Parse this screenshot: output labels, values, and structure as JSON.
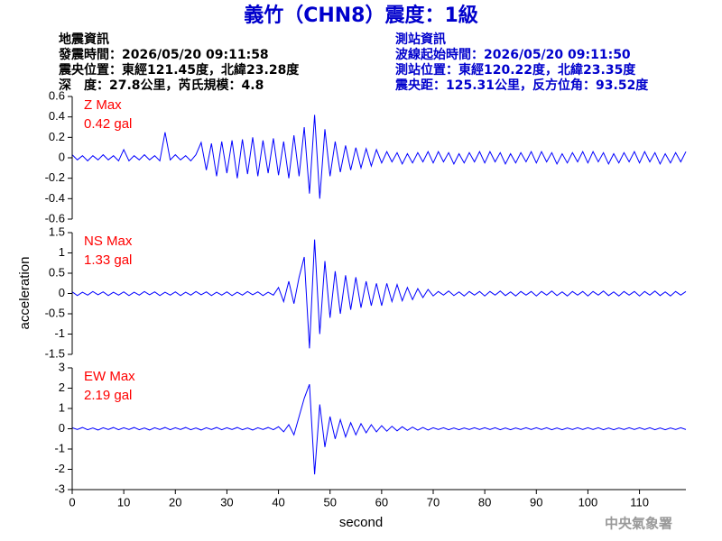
{
  "title": "義竹（CHN8）震度：1級",
  "info_left": [
    "地震資訊",
    "發震時間：2026/05/20 09:11:58",
    "震央位置：東經121.45度，北緯23.28度",
    "深　度：27.8公里，芮氏規模：4.8"
  ],
  "info_right": [
    "測站資訊",
    "波線起始時間：2026/05/20 09:11:50",
    "測站位置：東經120.22度，北緯23.35度",
    "震央距：125.31公里，反方位角：93.52度"
  ],
  "y_label": "acceleration",
  "footer": "中央氣象署",
  "chart_data": [
    {
      "type": "line",
      "label": "Z Max",
      "annotation": "0.42 gal",
      "color": "#0000ff",
      "label_color": "#ff0000",
      "xlim": [
        0,
        119
      ],
      "ylim": [
        -0.6,
        0.6
      ],
      "yticks": [
        0.6,
        0.4,
        0.2,
        0,
        -0.2,
        -0.4,
        -0.6
      ],
      "x": [
        0,
        1,
        2,
        3,
        4,
        5,
        6,
        7,
        8,
        9,
        10,
        11,
        12,
        13,
        14,
        15,
        16,
        17,
        18,
        19,
        20,
        21,
        22,
        23,
        24,
        25,
        26,
        27,
        28,
        29,
        30,
        31,
        32,
        33,
        34,
        35,
        36,
        37,
        38,
        39,
        40,
        41,
        42,
        43,
        44,
        45,
        46,
        47,
        48,
        49,
        50,
        51,
        52,
        53,
        54,
        55,
        56,
        57,
        58,
        59,
        60,
        61,
        62,
        63,
        64,
        65,
        66,
        67,
        68,
        69,
        70,
        71,
        72,
        73,
        74,
        75,
        76,
        77,
        78,
        79,
        80,
        81,
        82,
        83,
        84,
        85,
        86,
        87,
        88,
        89,
        90,
        91,
        92,
        93,
        94,
        95,
        96,
        97,
        98,
        99,
        100,
        101,
        102,
        103,
        104,
        105,
        106,
        107,
        108,
        109,
        110,
        111,
        112,
        113,
        114,
        115,
        116,
        117,
        118,
        119
      ],
      "values": [
        0.03,
        -0.02,
        0.02,
        -0.03,
        0.02,
        -0.02,
        0.03,
        -0.02,
        0.02,
        -0.03,
        0.08,
        -0.03,
        0.02,
        -0.02,
        0.03,
        -0.02,
        0.02,
        -0.03,
        0.25,
        -0.02,
        0.03,
        -0.02,
        0.02,
        -0.03,
        0.03,
        0.15,
        -0.12,
        0.14,
        -0.18,
        0.16,
        -0.15,
        0.17,
        -0.2,
        0.18,
        -0.16,
        0.2,
        -0.18,
        0.17,
        -0.15,
        0.19,
        -0.17,
        0.16,
        -0.2,
        0.22,
        -0.18,
        0.3,
        -0.35,
        0.42,
        -0.4,
        0.28,
        -0.18,
        0.16,
        -0.14,
        0.12,
        -0.12,
        0.1,
        -0.1,
        0.09,
        -0.08,
        0.08,
        -0.05,
        0.06,
        -0.04,
        0.05,
        -0.06,
        0.04,
        -0.05,
        0.05,
        -0.04,
        0.06,
        -0.05,
        0.06,
        -0.04,
        0.05,
        -0.06,
        0.04,
        -0.05,
        0.05,
        -0.04,
        0.06,
        -0.05,
        0.06,
        -0.04,
        0.05,
        -0.06,
        0.04,
        -0.05,
        0.05,
        -0.04,
        0.06,
        -0.05,
        0.06,
        -0.04,
        0.05,
        -0.06,
        0.04,
        -0.05,
        0.05,
        -0.04,
        0.06,
        -0.05,
        0.06,
        -0.04,
        0.05,
        -0.06,
        0.04,
        -0.05,
        0.05,
        -0.04,
        0.06,
        -0.05,
        0.06,
        -0.04,
        0.05,
        -0.06,
        0.04,
        -0.05,
        0.05,
        -0.04,
        0.06
      ]
    },
    {
      "type": "line",
      "label": "NS Max",
      "annotation": "1.33 gal",
      "color": "#0000ff",
      "label_color": "#ff0000",
      "xlim": [
        0,
        119
      ],
      "ylim": [
        -1.5,
        1.5
      ],
      "yticks": [
        1.5,
        1,
        0.5,
        0,
        -0.5,
        -1,
        -1.5
      ],
      "x": [
        0,
        1,
        2,
        3,
        4,
        5,
        6,
        7,
        8,
        9,
        10,
        11,
        12,
        13,
        14,
        15,
        16,
        17,
        18,
        19,
        20,
        21,
        22,
        23,
        24,
        25,
        26,
        27,
        28,
        29,
        30,
        31,
        32,
        33,
        34,
        35,
        36,
        37,
        38,
        39,
        40,
        41,
        42,
        43,
        44,
        45,
        46,
        47,
        48,
        49,
        50,
        51,
        52,
        53,
        54,
        55,
        56,
        57,
        58,
        59,
        60,
        61,
        62,
        63,
        64,
        65,
        66,
        67,
        68,
        69,
        70,
        71,
        72,
        73,
        74,
        75,
        76,
        77,
        78,
        79,
        80,
        81,
        82,
        83,
        84,
        85,
        86,
        87,
        88,
        89,
        90,
        91,
        92,
        93,
        94,
        95,
        96,
        97,
        98,
        99,
        100,
        101,
        102,
        103,
        104,
        105,
        106,
        107,
        108,
        109,
        110,
        111,
        112,
        113,
        114,
        115,
        116,
        117,
        118,
        119
      ],
      "values": [
        0.04,
        -0.05,
        0.03,
        -0.04,
        0.05,
        -0.03,
        0.04,
        -0.05,
        0.03,
        -0.04,
        0.04,
        -0.05,
        0.03,
        -0.04,
        0.05,
        -0.03,
        0.04,
        -0.05,
        0.03,
        -0.04,
        0.04,
        -0.05,
        0.03,
        -0.04,
        0.05,
        -0.03,
        0.04,
        -0.05,
        0.03,
        -0.04,
        0.04,
        -0.05,
        0.03,
        -0.04,
        0.05,
        -0.03,
        0.04,
        -0.05,
        0.03,
        -0.04,
        0.15,
        -0.2,
        0.3,
        -0.25,
        0.4,
        0.9,
        -1.35,
        1.33,
        -1.0,
        0.8,
        -0.6,
        0.55,
        -0.5,
        0.45,
        -0.4,
        0.4,
        -0.35,
        0.3,
        -0.3,
        0.25,
        -0.3,
        0.25,
        -0.2,
        0.22,
        -0.18,
        0.15,
        -0.15,
        0.12,
        -0.1,
        0.1,
        -0.06,
        0.05,
        -0.04,
        0.06,
        -0.05,
        0.04,
        -0.06,
        0.05,
        -0.04,
        0.05,
        -0.06,
        0.05,
        -0.04,
        0.06,
        -0.05,
        0.04,
        -0.06,
        0.05,
        -0.04,
        0.05,
        -0.06,
        0.05,
        -0.04,
        0.06,
        -0.05,
        0.04,
        -0.06,
        0.05,
        -0.04,
        0.05,
        -0.06,
        0.05,
        -0.04,
        0.06,
        -0.05,
        0.04,
        -0.06,
        0.05,
        -0.04,
        0.05,
        -0.06,
        0.05,
        -0.04,
        0.06,
        -0.05,
        0.04,
        -0.06,
        0.05,
        -0.04,
        0.05
      ]
    },
    {
      "type": "line",
      "label": "EW Max",
      "annotation": "2.19 gal",
      "color": "#0000ff",
      "label_color": "#ff0000",
      "x_label": "second",
      "xlim": [
        0,
        119
      ],
      "ylim": [
        -3,
        3
      ],
      "yticks": [
        3,
        2,
        1,
        0,
        -1,
        -2,
        -3
      ],
      "xticks": [
        0,
        10,
        20,
        30,
        40,
        50,
        60,
        70,
        80,
        90,
        100,
        110
      ],
      "x": [
        0,
        1,
        2,
        3,
        4,
        5,
        6,
        7,
        8,
        9,
        10,
        11,
        12,
        13,
        14,
        15,
        16,
        17,
        18,
        19,
        20,
        21,
        22,
        23,
        24,
        25,
        26,
        27,
        28,
        29,
        30,
        31,
        32,
        33,
        34,
        35,
        36,
        37,
        38,
        39,
        40,
        41,
        42,
        43,
        44,
        45,
        46,
        47,
        48,
        49,
        50,
        51,
        52,
        53,
        54,
        55,
        56,
        57,
        58,
        59,
        60,
        61,
        62,
        63,
        64,
        65,
        66,
        67,
        68,
        69,
        70,
        71,
        72,
        73,
        74,
        75,
        76,
        77,
        78,
        79,
        80,
        81,
        82,
        83,
        84,
        85,
        86,
        87,
        88,
        89,
        90,
        91,
        92,
        93,
        94,
        95,
        96,
        97,
        98,
        99,
        100,
        101,
        102,
        103,
        104,
        105,
        106,
        107,
        108,
        109,
        110,
        111,
        112,
        113,
        114,
        115,
        116,
        117,
        118,
        119
      ],
      "values": [
        0.05,
        -0.04,
        0.06,
        -0.05,
        0.04,
        -0.06,
        0.05,
        -0.04,
        0.06,
        -0.05,
        0.05,
        -0.04,
        0.06,
        -0.05,
        0.04,
        -0.06,
        0.05,
        -0.04,
        0.06,
        -0.05,
        0.05,
        -0.04,
        0.06,
        -0.05,
        0.04,
        -0.06,
        0.05,
        -0.04,
        0.06,
        -0.05,
        0.05,
        -0.04,
        0.06,
        -0.05,
        0.04,
        -0.06,
        0.05,
        -0.04,
        0.06,
        -0.05,
        0.1,
        -0.15,
        0.2,
        -0.3,
        0.6,
        1.5,
        2.19,
        -2.25,
        1.2,
        -0.9,
        0.6,
        -0.5,
        0.45,
        -0.4,
        0.3,
        -0.3,
        0.25,
        -0.2,
        0.2,
        -0.15,
        0.15,
        -0.12,
        0.12,
        -0.1,
        0.1,
        -0.08,
        0.08,
        -0.07,
        0.06,
        -0.06,
        0.05,
        -0.04,
        0.05,
        -0.05,
        0.04,
        -0.05,
        0.04,
        -0.04,
        0.05,
        -0.04,
        0.05,
        -0.04,
        0.05,
        -0.05,
        0.04,
        -0.05,
        0.04,
        -0.04,
        0.05,
        -0.04,
        0.05,
        -0.04,
        0.05,
        -0.05,
        0.04,
        -0.05,
        0.04,
        -0.04,
        0.05,
        -0.04,
        0.05,
        -0.04,
        0.05,
        -0.05,
        0.04,
        -0.05,
        0.04,
        -0.04,
        0.05,
        -0.04,
        0.05,
        -0.04,
        0.05,
        -0.05,
        0.04,
        -0.05,
        0.04,
        -0.04,
        0.05,
        -0.04
      ]
    }
  ]
}
